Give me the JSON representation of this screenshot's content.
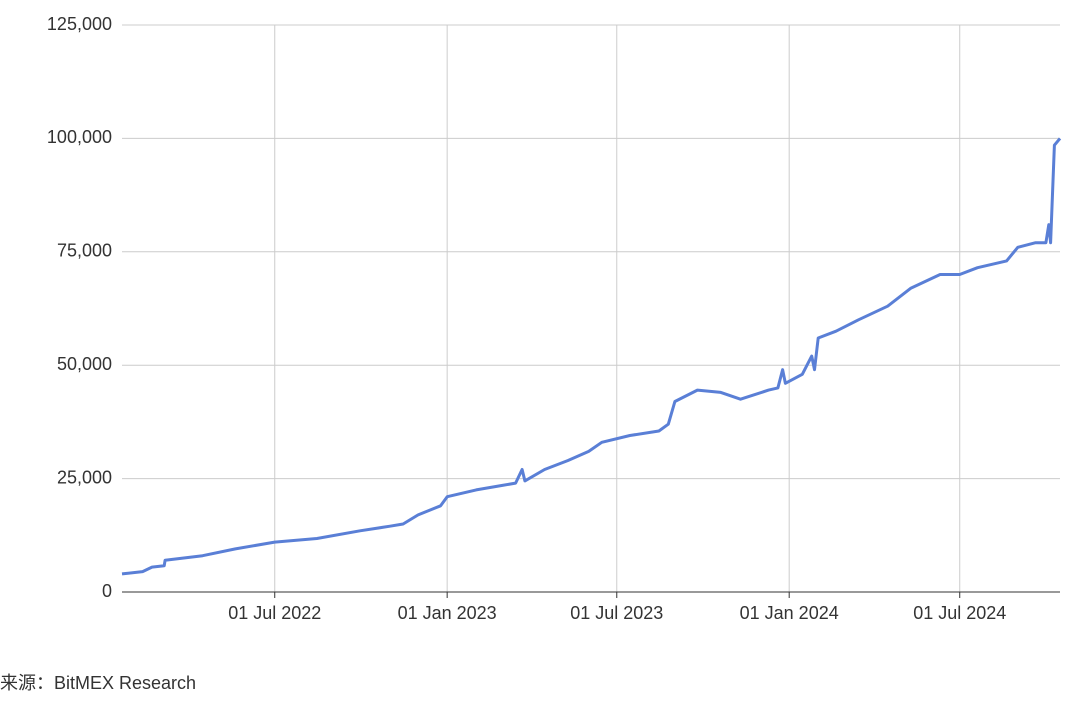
{
  "chart_data": {
    "type": "line",
    "x": [
      "2022-01-19",
      "2022-02-10",
      "2022-02-20",
      "2022-03-05",
      "2022-03-06",
      "2022-04-15",
      "2022-05-20",
      "2022-07-01",
      "2022-08-15",
      "2022-09-30",
      "2022-11-01",
      "2022-11-15",
      "2022-12-01",
      "2022-12-25",
      "2023-01-01",
      "2023-02-01",
      "2023-03-01",
      "2023-03-15",
      "2023-03-22",
      "2023-03-25",
      "2023-04-15",
      "2023-05-10",
      "2023-06-01",
      "2023-06-15",
      "2023-07-15",
      "2023-08-15",
      "2023-08-25",
      "2023-09-01",
      "2023-09-25",
      "2023-10-20",
      "2023-11-10",
      "2023-12-10",
      "2023-12-20",
      "2023-12-25",
      "2023-12-28",
      "2024-01-15",
      "2024-01-25",
      "2024-01-28",
      "2024-02-01",
      "2024-02-20",
      "2024-03-15",
      "2024-04-15",
      "2024-05-10",
      "2024-06-10",
      "2024-07-01",
      "2024-07-20",
      "2024-08-20",
      "2024-09-01",
      "2024-09-20",
      "2024-10-01",
      "2024-10-04",
      "2024-10-06",
      "2024-10-10",
      "2024-10-16"
    ],
    "series": [
      {
        "color": "#5a7fd6",
        "values": [
          4000,
          4500,
          5500,
          5800,
          7000,
          8000,
          9500,
          11000,
          11800,
          13500,
          14500,
          15000,
          17000,
          19000,
          21000,
          22500,
          23500,
          24000,
          27000,
          24500,
          27000,
          29000,
          31000,
          33000,
          34500,
          35500,
          37000,
          42000,
          44500,
          44000,
          42500,
          44500,
          45000,
          49000,
          46000,
          48000,
          52000,
          49000,
          56000,
          57500,
          60000,
          63000,
          67000,
          70000,
          70000,
          71500,
          73000,
          76000,
          77000,
          77000,
          81000,
          77000,
          98500,
          100000
        ]
      }
    ],
    "xlim": [
      "2022-01-19",
      "2024-10-16"
    ],
    "xticks": [
      {
        "value": "2022-07-01",
        "label": "01 Jul 2022"
      },
      {
        "value": "2023-01-01",
        "label": "01 Jan 2023"
      },
      {
        "value": "2023-07-01",
        "label": "01 Jul 2023"
      },
      {
        "value": "2024-01-01",
        "label": "01 Jan 2024"
      },
      {
        "value": "2024-07-01",
        "label": "01 Jul 2024"
      }
    ],
    "ylim": [
      0,
      125000
    ],
    "yticks": [
      0,
      {
        "value": 25000,
        "label": "25,000"
      },
      {
        "value": 50000,
        "label": "50,000"
      },
      {
        "value": 75000,
        "label": "75,000"
      },
      {
        "value": 100000,
        "label": "100,000"
      },
      {
        "value": 125000,
        "label": "125,000"
      }
    ],
    "grid": true,
    "source": "来源：BitMEX Research"
  }
}
